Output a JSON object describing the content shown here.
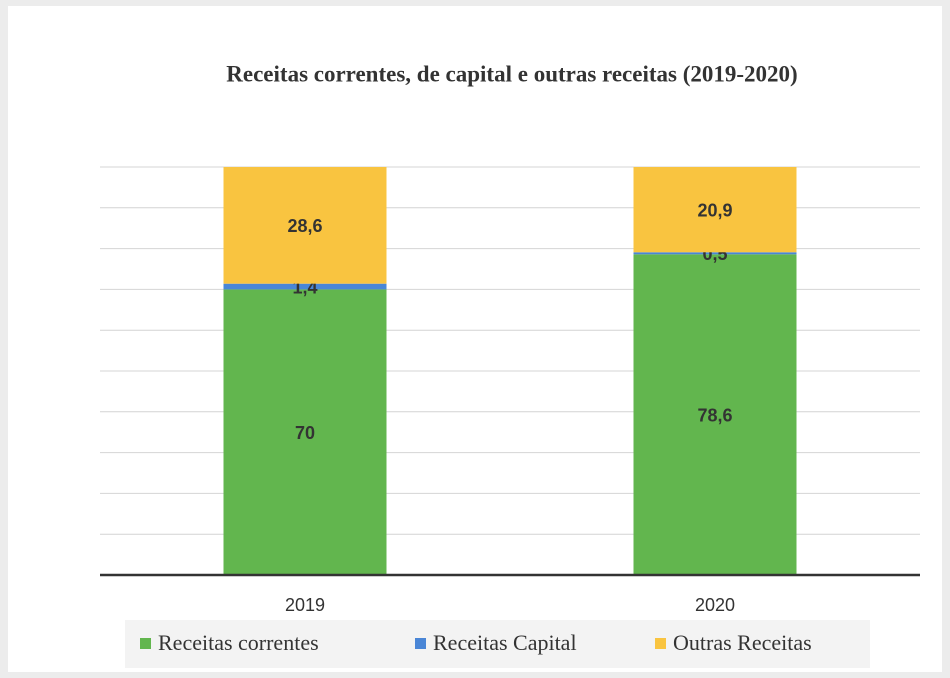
{
  "chart_data": {
    "type": "stacked_bar",
    "title": "Receitas correntes, de capital e outras receitas (2019-2020)",
    "categories": [
      "2019",
      "2020"
    ],
    "series": [
      {
        "name": "Receitas correntes",
        "color": "#62b64e",
        "values": [
          70,
          78.6
        ],
        "value_labels": [
          "70",
          "78,6"
        ]
      },
      {
        "name": "Receitas Capital",
        "color": "#4a86d6",
        "values": [
          1.4,
          0.5
        ],
        "value_labels": [
          "1,4",
          "0,5"
        ]
      },
      {
        "name": "Outras Receitas",
        "color": "#f9c440",
        "values": [
          28.6,
          20.9
        ],
        "value_labels": [
          "28,6",
          "20,9"
        ]
      }
    ],
    "ylim": [
      0,
      100
    ],
    "yticks": [
      0,
      10,
      20,
      30,
      40,
      50,
      60,
      70,
      80,
      90,
      100
    ],
    "grid": true,
    "legend": "bottom"
  }
}
